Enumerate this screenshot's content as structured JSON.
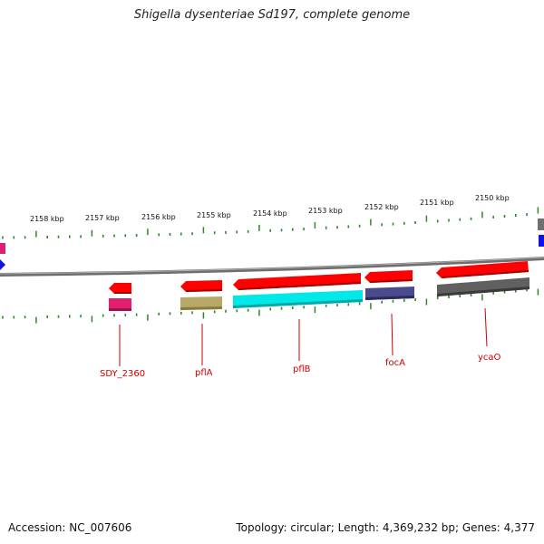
{
  "title": "Shigella dysenteriae Sd197, complete genome",
  "footer": {
    "accession": "Accession: NC_007606",
    "summary": "Topology: circular; Length: 4,369,232 bp; Genes: 4,377"
  },
  "scale_labels": [
    "2158 kbp",
    "2157 kbp",
    "2156 kbp",
    "2155 kbp",
    "2154 kbp",
    "2153 kbp",
    "2152 kbp",
    "2151 kbp",
    "2150 kbp"
  ],
  "genes": [
    {
      "name": "SDY_2360",
      "color": "#ff0000",
      "strand": "minus",
      "cog_color": "#e0206e"
    },
    {
      "name": "pflA",
      "color": "#ff0000",
      "strand": "minus",
      "cog_color": "#b8a868"
    },
    {
      "name": "pflB",
      "color": "#ff0000",
      "strand": "minus",
      "cog_color": "#00e8e8"
    },
    {
      "name": "focA",
      "color": "#ff0000",
      "strand": "minus",
      "cog_color": "#4a4a8c"
    },
    {
      "name": "ycaO",
      "color": "#ff0000",
      "strand": "minus",
      "cog_color": "#606060"
    }
  ],
  "colors": {
    "backbone": "#7a7a7a",
    "tick": "#2a8a2a",
    "label_line": "#cc0000"
  }
}
